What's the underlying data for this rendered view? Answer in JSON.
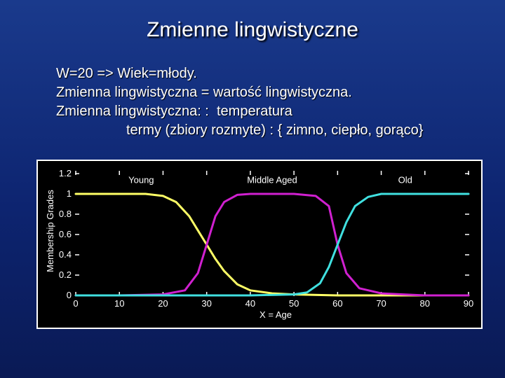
{
  "slide": {
    "title": "Zmienne lingwistyczne",
    "lines": [
      "W=20 => Wiek=młody.",
      "Zmienna lingwistyczna = wartość lingwistyczna.",
      "Zmienna lingwistyczna: :  temperatura",
      "termy (zbiory rozmyte) : { zimno, ciepło, gorąco}"
    ]
  },
  "colors": {
    "background": "#0d2470",
    "young": "#ffff66",
    "middle_aged": "#d020d0",
    "old": "#40e0e0",
    "plot_background": "#000000"
  },
  "chart_data": {
    "type": "line",
    "title": "",
    "xlabel": "X = Age",
    "ylabel": "Membership Grades",
    "xlim": [
      0,
      90
    ],
    "ylim": [
      0,
      1.2
    ],
    "xticks": [
      "0",
      "10",
      "20",
      "30",
      "40",
      "50",
      "60",
      "70",
      "80",
      "90"
    ],
    "yticks": [
      "0",
      "0.2",
      "0.4",
      "0.6",
      "0.8",
      "1",
      "1.2"
    ],
    "grid": false,
    "series": [
      {
        "name": "Young",
        "color": "#ffff66",
        "x": [
          0,
          10,
          16,
          20,
          23,
          26,
          28,
          30,
          32,
          34,
          37,
          40,
          45,
          50,
          60,
          90
        ],
        "y": [
          1,
          1,
          1,
          0.98,
          0.92,
          0.78,
          0.64,
          0.5,
          0.36,
          0.24,
          0.11,
          0.05,
          0.02,
          0.01,
          0,
          0
        ]
      },
      {
        "name": "Middle Aged",
        "color": "#d020d0",
        "x": [
          0,
          10,
          20,
          25,
          28,
          30,
          32,
          34,
          37,
          40,
          45,
          50,
          55,
          58,
          60,
          62,
          65,
          70,
          75,
          80,
          90
        ],
        "y": [
          0,
          0,
          0.01,
          0.05,
          0.22,
          0.5,
          0.78,
          0.92,
          0.99,
          1,
          1,
          1,
          0.98,
          0.88,
          0.5,
          0.22,
          0.07,
          0.02,
          0.01,
          0,
          0
        ]
      },
      {
        "name": "Old",
        "color": "#40e0e0",
        "x": [
          0,
          40,
          50,
          53,
          56,
          58,
          60,
          62,
          64,
          67,
          70,
          80,
          90
        ],
        "y": [
          0,
          0,
          0.01,
          0.03,
          0.12,
          0.28,
          0.5,
          0.72,
          0.88,
          0.97,
          1,
          1,
          1
        ]
      }
    ],
    "series_labels": [
      {
        "text": "Young",
        "x": 15,
        "y": 1.14
      },
      {
        "text": "Middle Aged",
        "x": 45,
        "y": 1.14
      },
      {
        "text": "Old",
        "x": 75.5,
        "y": 1.14
      }
    ]
  }
}
